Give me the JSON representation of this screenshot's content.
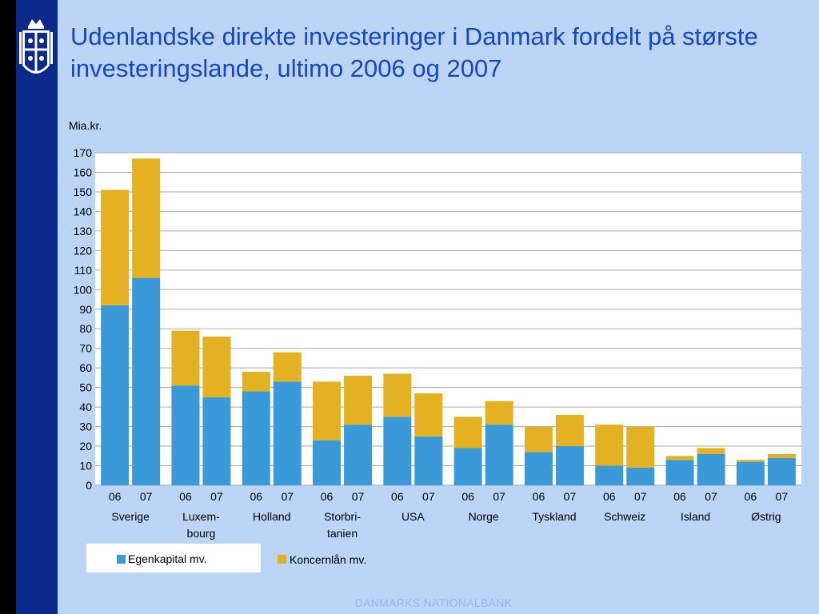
{
  "title": "Udenlandske direkte investeringer i Danmark fordelt på største investeringslande, ultimo 2006 og 2007",
  "footer": "DANMARKS NATIONALBANK",
  "colors": {
    "egenkapital": "#3a9ad9",
    "koncernlaan": "#e3b122",
    "title": "#1747c4",
    "background": "#bcd4f6",
    "sidebar": "#0b2a8c"
  },
  "chart_data": {
    "type": "bar",
    "stacked": true,
    "ylabel": "Mia.kr.",
    "ylim": [
      0,
      170
    ],
    "yticks": [
      "0",
      "10",
      "20",
      "30",
      "40",
      "50",
      "60",
      "70",
      "80",
      "90",
      "100",
      "110",
      "120",
      "130",
      "140",
      "150",
      "160",
      "170"
    ],
    "grid": true,
    "legend_position": "bottom-left",
    "groups": [
      {
        "name": "Sverige",
        "lines": [
          "Sverige"
        ],
        "years": [
          "06",
          "07"
        ]
      },
      {
        "name": "Luxem-bourg",
        "lines": [
          "Luxem-",
          "bourg"
        ],
        "years": [
          "06",
          "07"
        ]
      },
      {
        "name": "Holland",
        "lines": [
          "Holland"
        ],
        "years": [
          "06",
          "07"
        ]
      },
      {
        "name": "Storbri-tanien",
        "lines": [
          "Storbri-",
          "tanien"
        ],
        "years": [
          "06",
          "07"
        ]
      },
      {
        "name": "USA",
        "lines": [
          "USA"
        ],
        "years": [
          "06",
          "07"
        ]
      },
      {
        "name": "Norge",
        "lines": [
          "Norge"
        ],
        "years": [
          "06",
          "07"
        ]
      },
      {
        "name": "Tyskland",
        "lines": [
          "Tyskland"
        ],
        "years": [
          "06",
          "07"
        ]
      },
      {
        "name": "Schweiz",
        "lines": [
          "Schweiz"
        ],
        "years": [
          "06",
          "07"
        ]
      },
      {
        "name": "Island",
        "lines": [
          "Island"
        ],
        "years": [
          "06",
          "07"
        ]
      },
      {
        "name": "Østrig",
        "lines": [
          "Østrig"
        ],
        "years": [
          "06",
          "07"
        ]
      }
    ],
    "series": [
      {
        "name": "Egenkapital mv.",
        "values": [
          92,
          106,
          51,
          45,
          48,
          53,
          23,
          31,
          35,
          25,
          19,
          31,
          17,
          20,
          10,
          9,
          13,
          16,
          12,
          14
        ]
      },
      {
        "name": "Koncernlån mv.",
        "values": [
          59,
          61,
          28,
          31,
          10,
          15,
          30,
          25,
          22,
          22,
          16,
          12,
          13,
          16,
          21,
          21,
          2,
          3,
          1,
          2
        ]
      }
    ]
  }
}
